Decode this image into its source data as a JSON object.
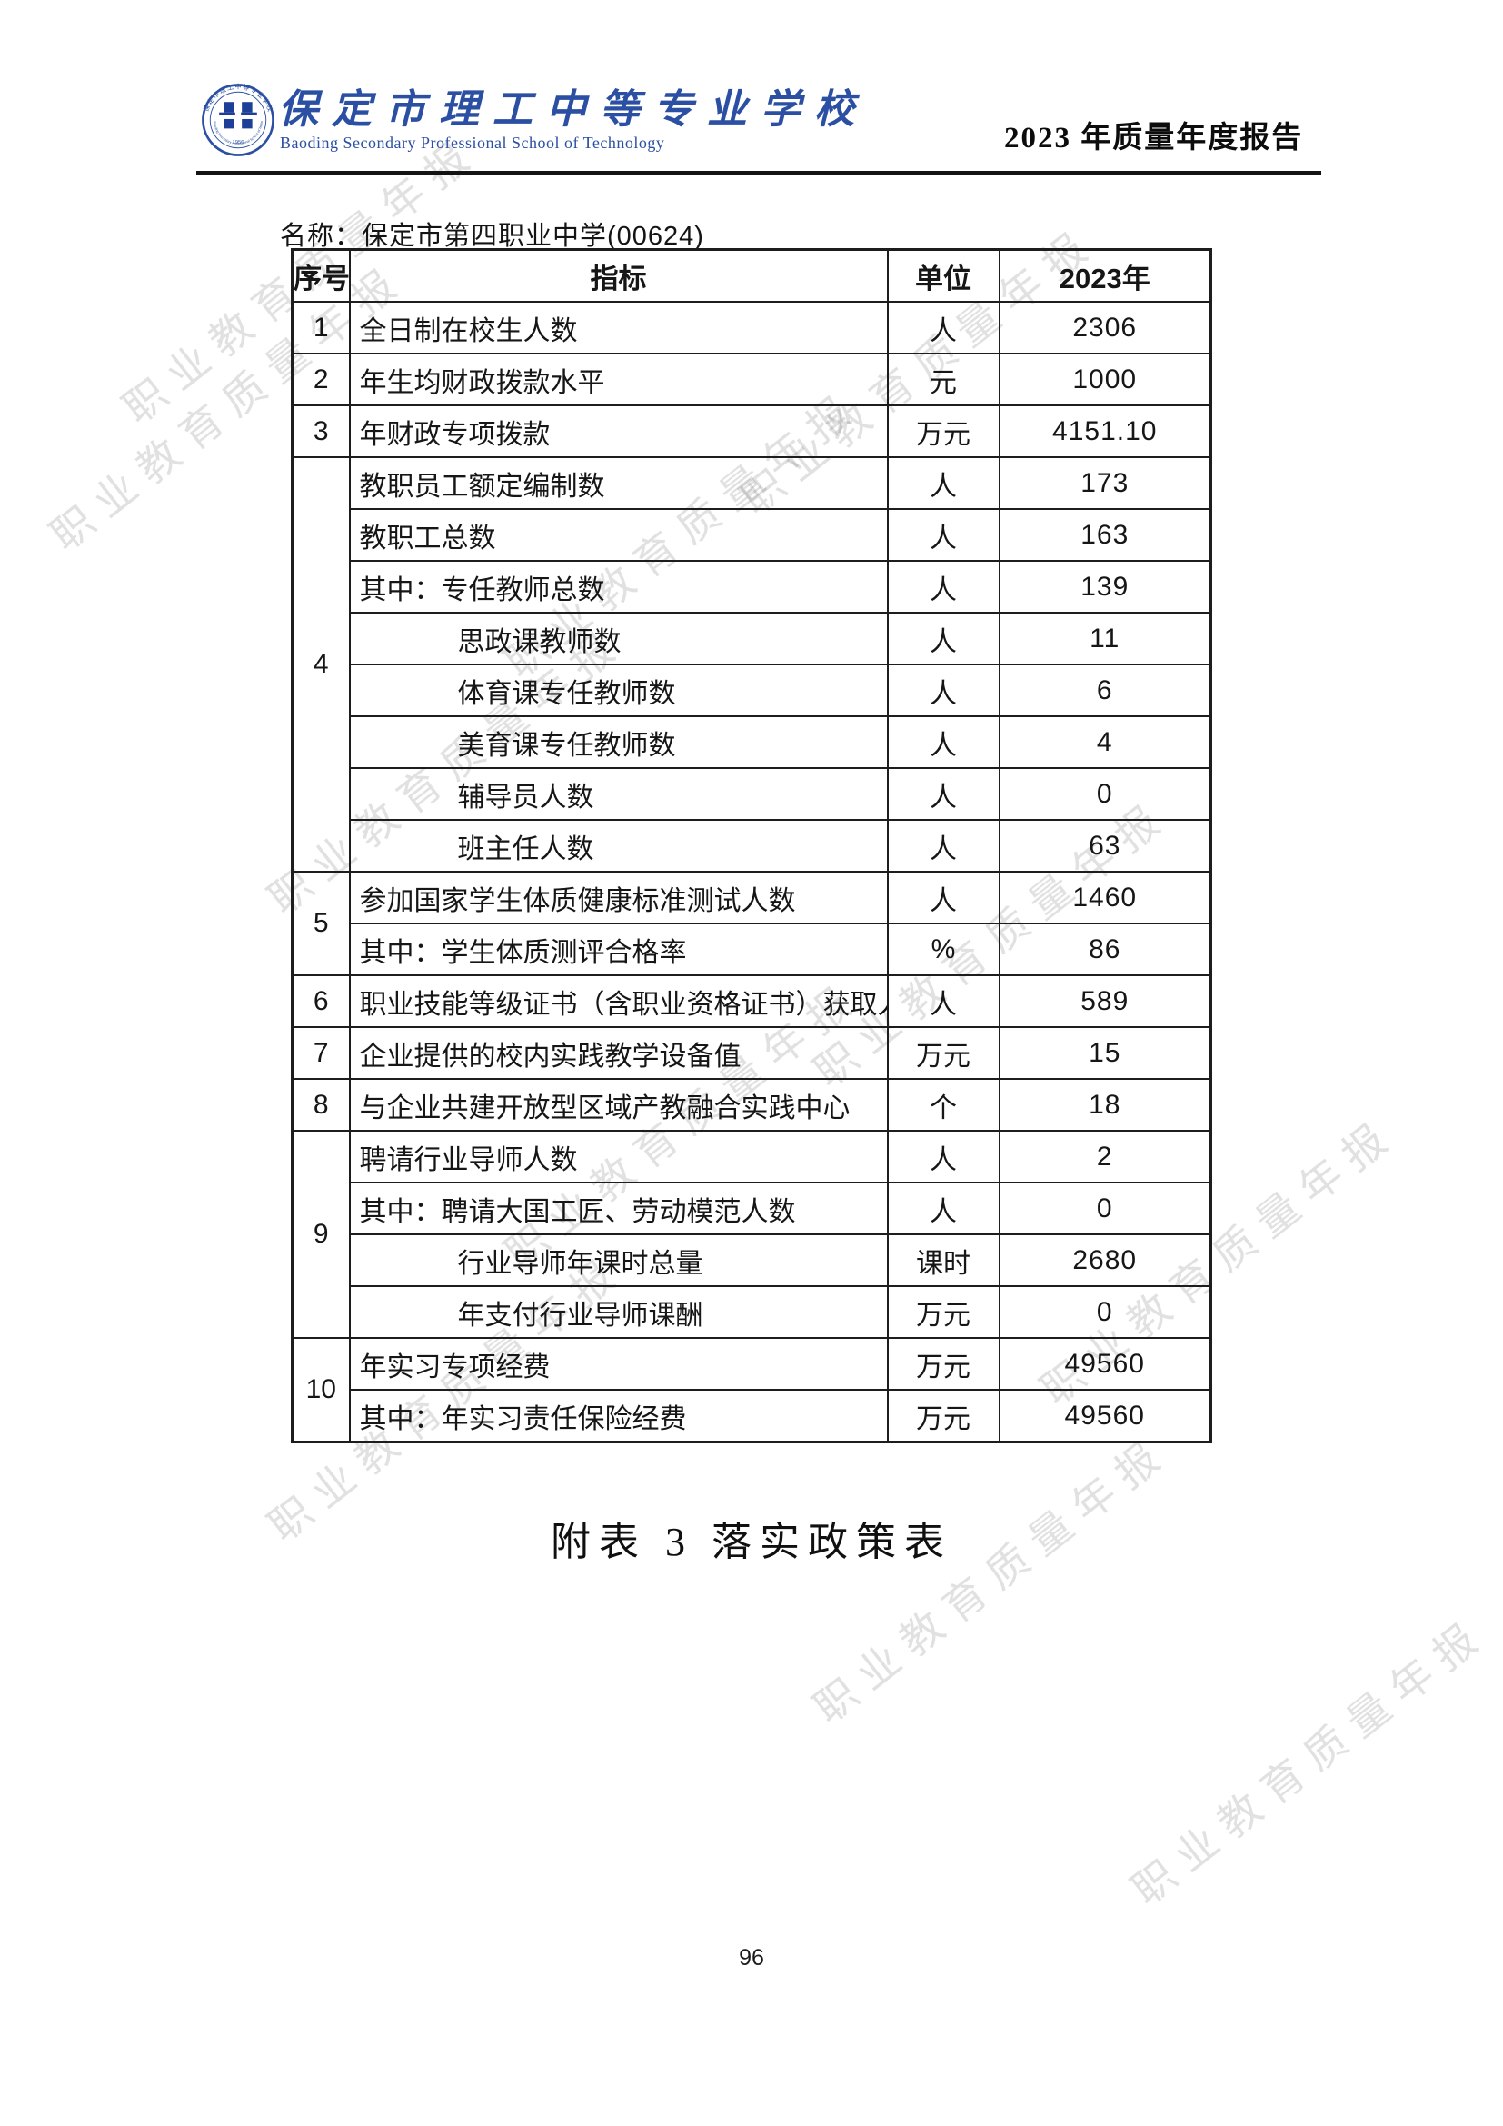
{
  "header": {
    "school_name_zh": "保定市理工中等专业学校",
    "school_name_en": "Baoding Secondary Professional School of Technology",
    "report_title": "2023 年质量年度报告",
    "logo": {
      "ring_text_zh": "保定市理工中等专业学校",
      "ring_text_en": "Baoding Secondary Professional School of Technology",
      "year": "1956"
    },
    "brand_color": "#2b4fa3"
  },
  "document": {
    "name_line": "名称：保定市第四职业中学(00624)",
    "caption": "附表 3 落实政策表",
    "page_number": "96"
  },
  "watermark": {
    "text": "职业教育质量年报",
    "color_hint": "#cfcfcf"
  },
  "table": {
    "columns": [
      "序号",
      "指标",
      "单位",
      "2023年"
    ],
    "groups": [
      {
        "no": "1",
        "items": [
          {
            "indicator": "全日制在校生人数",
            "unit": "人",
            "value": "2306",
            "indent": false
          }
        ]
      },
      {
        "no": "2",
        "items": [
          {
            "indicator": "年生均财政拨款水平",
            "unit": "元",
            "value": "1000",
            "indent": false
          }
        ]
      },
      {
        "no": "3",
        "items": [
          {
            "indicator": "年财政专项拨款",
            "unit": "万元",
            "value": "4151.10",
            "indent": false
          }
        ]
      },
      {
        "no": "4",
        "items": [
          {
            "indicator": "教职员工额定编制数",
            "unit": "人",
            "value": "173",
            "indent": false
          },
          {
            "indicator": "教职工总数",
            "unit": "人",
            "value": "163",
            "indent": false
          },
          {
            "indicator": "其中：专任教师总数",
            "unit": "人",
            "value": "139",
            "indent": false
          },
          {
            "indicator": "思政课教师数",
            "unit": "人",
            "value": "11",
            "indent": true
          },
          {
            "indicator": "体育课专任教师数",
            "unit": "人",
            "value": "6",
            "indent": true
          },
          {
            "indicator": "美育课专任教师数",
            "unit": "人",
            "value": "4",
            "indent": true
          },
          {
            "indicator": "辅导员人数",
            "unit": "人",
            "value": "0",
            "indent": true
          },
          {
            "indicator": "班主任人数",
            "unit": "人",
            "value": "63",
            "indent": true
          }
        ]
      },
      {
        "no": "5",
        "items": [
          {
            "indicator": "参加国家学生体质健康标准测试人数",
            "unit": "人",
            "value": "1460",
            "indent": false
          },
          {
            "indicator": "其中：学生体质测评合格率",
            "unit": "%",
            "value": "86",
            "indent": false
          }
        ]
      },
      {
        "no": "6",
        "items": [
          {
            "indicator": "职业技能等级证书（含职业资格证书）获取人数",
            "unit": "人",
            "value": "589",
            "indent": false
          }
        ]
      },
      {
        "no": "7",
        "items": [
          {
            "indicator": "企业提供的校内实践教学设备值",
            "unit": "万元",
            "value": "15",
            "indent": false
          }
        ]
      },
      {
        "no": "8",
        "items": [
          {
            "indicator": "与企业共建开放型区域产教融合实践中心",
            "unit": "个",
            "value": "18",
            "indent": false
          }
        ]
      },
      {
        "no": "9",
        "items": [
          {
            "indicator": "聘请行业导师人数",
            "unit": "人",
            "value": "2",
            "indent": false
          },
          {
            "indicator": "其中：聘请大国工匠、劳动模范人数",
            "unit": "人",
            "value": "0",
            "indent": false
          },
          {
            "indicator": "行业导师年课时总量",
            "unit": "课时",
            "value": "2680",
            "indent": true
          },
          {
            "indicator": "年支付行业导师课酬",
            "unit": "万元",
            "value": "0",
            "indent": true
          }
        ]
      },
      {
        "no": "10",
        "items": [
          {
            "indicator": "年实习专项经费",
            "unit": "万元",
            "value": "49560",
            "indent": false
          },
          {
            "indicator": "其中：年实习责任保险经费",
            "unit": "万元",
            "value": "49560",
            "indent": false
          }
        ]
      }
    ]
  }
}
